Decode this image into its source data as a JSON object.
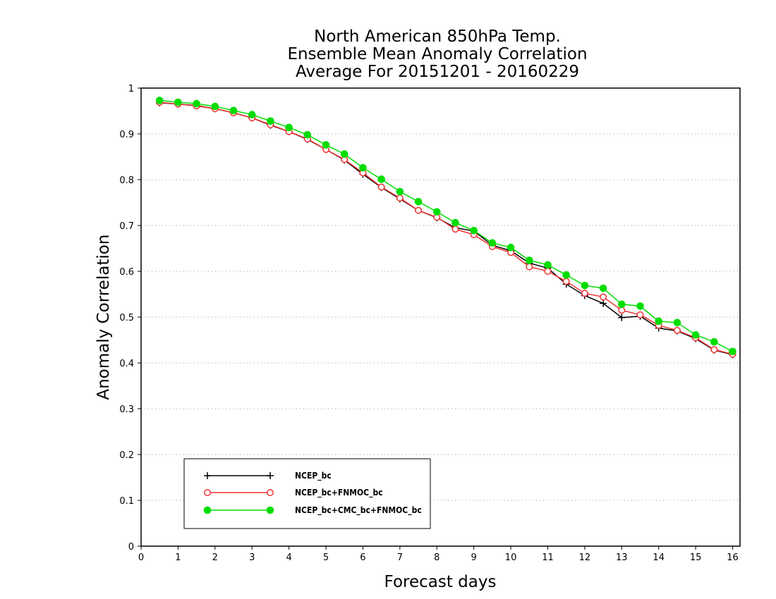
{
  "chart_data": {
    "type": "line",
    "title": [
      "North American 850hPa Temp.",
      "Ensemble Mean Anomaly Correlation",
      "Average For 20151201 - 20160229"
    ],
    "xlabel": "Forecast days",
    "ylabel": "Anomaly Correlation",
    "xlim": [
      0,
      16.2
    ],
    "ylim": [
      0,
      1
    ],
    "xticks": [
      0,
      1,
      2,
      3,
      4,
      5,
      6,
      7,
      8,
      9,
      10,
      11,
      12,
      13,
      14,
      15,
      16
    ],
    "yticks": [
      0,
      0.1,
      0.2,
      0.3,
      0.4,
      0.5,
      0.6,
      0.7,
      0.8,
      0.9,
      1
    ],
    "grid": "horizontal-dotted",
    "legend_position": "bottom-left",
    "x": [
      0.5,
      1.0,
      1.5,
      2.0,
      2.5,
      3.0,
      3.5,
      4.0,
      4.5,
      5.0,
      5.5,
      6.0,
      6.5,
      7.0,
      7.5,
      8.0,
      8.5,
      9.0,
      9.5,
      10.0,
      10.5,
      11.0,
      11.5,
      12.0,
      12.5,
      13.0,
      13.5,
      14.0,
      14.5,
      15.0,
      15.5,
      16.0
    ],
    "series": [
      {
        "name": "NCEP_bc",
        "color": "#000000",
        "marker": "plus",
        "values": [
          0.968,
          0.965,
          0.962,
          0.955,
          0.946,
          0.935,
          0.919,
          0.905,
          0.888,
          0.866,
          0.843,
          0.812,
          0.783,
          0.758,
          0.733,
          0.717,
          0.695,
          0.688,
          0.657,
          0.645,
          0.618,
          0.607,
          0.572,
          0.547,
          0.53,
          0.499,
          0.502,
          0.476,
          0.47,
          0.453,
          0.428,
          0.418
        ]
      },
      {
        "name": "NCEP_bc+FNMOC_bc",
        "color": "#ee3333",
        "marker": "open-circle",
        "values": [
          0.969,
          0.965,
          0.961,
          0.955,
          0.946,
          0.935,
          0.92,
          0.905,
          0.889,
          0.866,
          0.844,
          0.815,
          0.784,
          0.76,
          0.733,
          0.718,
          0.692,
          0.68,
          0.654,
          0.641,
          0.61,
          0.6,
          0.578,
          0.552,
          0.544,
          0.515,
          0.505,
          0.482,
          0.471,
          0.455,
          0.429,
          0.419
        ]
      },
      {
        "name": "NCEP_bc+CMC_bc+FNMOC_bc",
        "color": "#00dd00",
        "marker": "filled-circle",
        "values": [
          0.973,
          0.969,
          0.966,
          0.96,
          0.951,
          0.942,
          0.928,
          0.914,
          0.898,
          0.876,
          0.856,
          0.826,
          0.801,
          0.774,
          0.752,
          0.73,
          0.706,
          0.689,
          0.662,
          0.652,
          0.624,
          0.614,
          0.592,
          0.569,
          0.563,
          0.528,
          0.524,
          0.491,
          0.488,
          0.461,
          0.446,
          0.425
        ]
      }
    ]
  }
}
